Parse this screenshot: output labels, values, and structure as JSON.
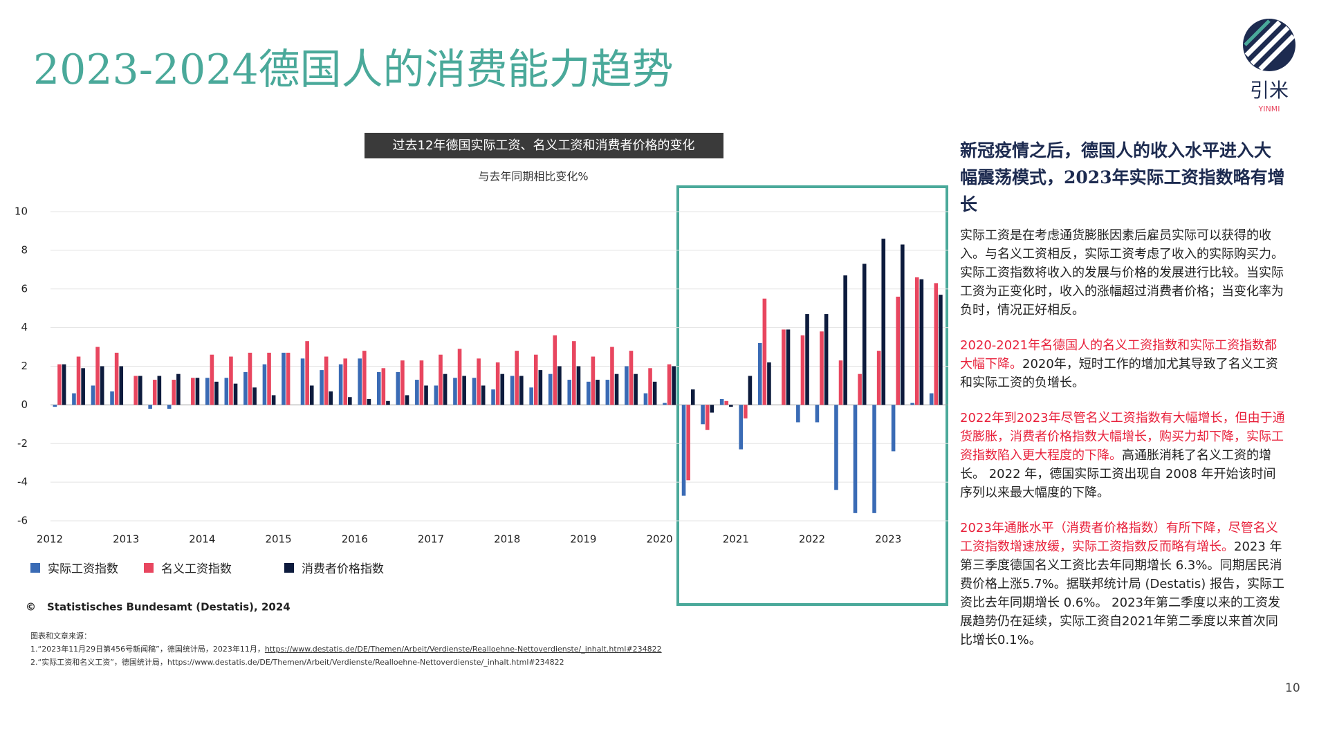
{
  "header": {
    "title": "2023-2024德国人的消费能力趋势",
    "logo": "引米",
    "logo_sub": "YINMI"
  },
  "chart_data": {
    "type": "bar",
    "title": "过去12年德国实际工资、名义工资和消费者价格的变化",
    "subtitle": "与去年同期相比变化%",
    "categories": [
      "2012",
      null,
      null,
      null,
      "2013",
      null,
      null,
      null,
      "2014",
      null,
      null,
      null,
      "2015",
      null,
      null,
      null,
      "2016",
      null,
      null,
      null,
      "2017",
      null,
      null,
      null,
      "2018",
      null,
      null,
      null,
      "2019",
      null,
      null,
      null,
      "2020",
      null,
      null,
      null,
      "2021",
      null,
      null,
      null,
      "2022",
      null,
      null,
      null,
      "2023",
      null,
      null
    ],
    "series": [
      {
        "name": "实际工资指数",
        "color": "#3a6bb5",
        "values": [
          -0.1,
          0.6,
          1.0,
          0.7,
          0,
          -0.2,
          -0.2,
          0,
          1.4,
          1.4,
          1.7,
          2.1,
          2.7,
          2.4,
          1.8,
          2.1,
          2.4,
          1.7,
          1.7,
          1.3,
          1.0,
          1.4,
          1.4,
          0.8,
          1.5,
          0.9,
          1.6,
          1.3,
          1.2,
          1.3,
          2.0,
          0.6,
          0.1,
          -4.7,
          -1.0,
          0.3,
          -2.3,
          3.2,
          0,
          -0.9,
          -0.9,
          -4.4,
          -5.6,
          -5.6,
          -2.4,
          0.1,
          0.6
        ]
      },
      {
        "name": "名义工资指数",
        "color": "#e8465f",
        "values": [
          2.1,
          2.5,
          3.0,
          2.7,
          1.5,
          1.3,
          1.3,
          1.4,
          2.6,
          2.5,
          2.7,
          2.7,
          2.7,
          3.3,
          2.5,
          2.4,
          2.8,
          1.9,
          2.3,
          2.3,
          2.6,
          2.9,
          2.4,
          2.2,
          2.8,
          2.6,
          3.6,
          3.3,
          2.5,
          3.0,
          2.8,
          1.9,
          2.1,
          -3.9,
          -1.3,
          0.2,
          -0.7,
          5.5,
          3.9,
          3.6,
          3.8,
          2.3,
          1.6,
          2.8,
          5.6,
          6.6,
          6.3
        ]
      },
      {
        "name": "消费者价格指数",
        "color": "#0d1b3d",
        "values": [
          2.1,
          1.9,
          2.0,
          2.0,
          1.5,
          1.5,
          1.6,
          1.4,
          1.2,
          1.1,
          0.9,
          0.5,
          0,
          1.0,
          0.7,
          0.4,
          0.3,
          0.2,
          0.5,
          1.0,
          1.6,
          1.5,
          1.0,
          1.6,
          1.5,
          1.8,
          2.0,
          2.0,
          1.3,
          1.6,
          1.6,
          1.2,
          2.0,
          0.8,
          -0.4,
          -0.1,
          1.5,
          2.2,
          3.9,
          4.7,
          4.7,
          6.7,
          7.3,
          8.6,
          8.3,
          6.5,
          5.7
        ]
      }
    ],
    "ylim": [
      -6,
      10
    ],
    "yticks": [
      -6,
      -4,
      -2,
      0,
      2,
      4,
      6,
      8,
      10
    ],
    "grid": true,
    "source": "Statistisches Bundesamt (Destatis), 2024"
  },
  "notes": {
    "heading": "图表和文章来源：",
    "items": [
      {
        "text": "1.“2023年11月29日第456号新闻稿”，德国统计局，2023年11月，",
        "url": "https://www.destatis.de/DE/Themen/Arbeit/Verdienste/Realloehne-Nettoverdienste/_inhalt.html#234822"
      },
      {
        "text": "2.“实际工资和名义工资”，德国统计局，https://www.destatis.de/DE/Themen/Arbeit/Verdienste/Realloehne-Nettoverdienste/_inhalt.html#234822"
      }
    ]
  },
  "sidebar": {
    "heading": "新冠疫情之后，德国人的收入水平进入大幅震荡模式，2023年实际工资指数略有增长",
    "paragraphs": [
      [
        {
          "text": "实际工资是在考虑通货膨胀因素后雇员实际可以获得的收入。与名义工资相反，实际工资考虑了收入的实际购买力。实际工资指数将收入的发展与价格的发展进行比较。当实际工资为正变化时，收入的涨幅超过消费者价格；当变化率为负时，情况正好相反。",
          "color": "#222222"
        }
      ],
      [
        {
          "text": "2020-2021年名德国人的名义工资指数和实际工资指数都大幅下降。",
          "color": "#e8213b"
        },
        {
          "text": "2020年，短时工作的增加尤其导致了名义工资和实际工资的负增长。",
          "color": "#222222"
        }
      ],
      [
        {
          "text": "2022年到2023年尽管名义工资指数有大幅增长，但由于通货膨胀，消费者价格指数大幅增长，购买力却下降，实际工资指数陷入更大程度的下降。",
          "color": "#e8213b"
        },
        {
          "text": "高通胀消耗了名义工资的增长。 2022 年，德国实际工资出现自 2008 年开始该时间序列以来最大幅度的下降。",
          "color": "#222222"
        }
      ],
      [
        {
          "text": "2023年通胀水平（消费者价格指数）有所下降，尽管名义工资指数增速放缓，实际工资指数反而略有增长。",
          "color": "#e8213b"
        },
        {
          "text": "2023 年第三季度德国名义工资比去年同期增长 6.3%。同期居民消费价格上涨5.7%。据联邦统计局 (Destatis) 报告，实际工资比去年同期增长 0.6%。 2023年第二季度以来的工资发展趋势仍在延续，实际工资自2021年第二季度以来首次同比增长0.1%。",
          "color": "#222222"
        }
      ]
    ]
  },
  "page_number": "10"
}
